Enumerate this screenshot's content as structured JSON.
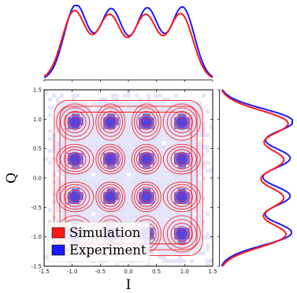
{
  "chart_data": {
    "type": "scatter",
    "description_kind": "joint IQ constellation density plot with marginal distributions",
    "xlabel": "I",
    "ylabel": "Q",
    "xlim": [
      -1.5,
      1.5
    ],
    "ylim": [
      -1.5,
      1.5
    ],
    "xticks": [
      "-1.5",
      "-1.0",
      "-0.5",
      "0.0",
      "0.5",
      "1.0",
      "1.5"
    ],
    "yticks": [
      "1.5",
      "1.0",
      "0.5",
      "0.0",
      "-0.5",
      "-1.0",
      "-1.5"
    ],
    "constellation_levels": [
      -0.95,
      -0.32,
      0.32,
      0.95
    ],
    "series": [
      {
        "name": "Simulation",
        "color": "#ff1a1a",
        "style": "contour lines + marginal curves"
      },
      {
        "name": "Experiment",
        "color": "#1a1aff",
        "style": "2D histogram + marginal curves"
      }
    ],
    "top_marginal": {
      "peaks_I": [
        -0.95,
        -0.32,
        0.32,
        0.95
      ],
      "simulation_heights": [
        0.92,
        0.86,
        0.86,
        0.88
      ],
      "experiment_heights": [
        1.0,
        0.94,
        0.95,
        0.97
      ]
    },
    "right_marginal": {
      "peaks_Q": [
        0.95,
        0.32,
        -0.32,
        -0.95
      ],
      "simulation_heights": [
        0.93,
        0.86,
        0.86,
        0.9
      ],
      "experiment_heights": [
        1.0,
        0.95,
        0.95,
        0.98
      ]
    },
    "legend": {
      "placement": "bottom-left",
      "entries": [
        "Simulation",
        "Experiment"
      ]
    },
    "colors": {
      "simulation": "#ff1a1a",
      "experiment": "#1a1aff",
      "histogram_light": "#c6c8f2",
      "histogram_dark": "#5a5fe0"
    }
  }
}
